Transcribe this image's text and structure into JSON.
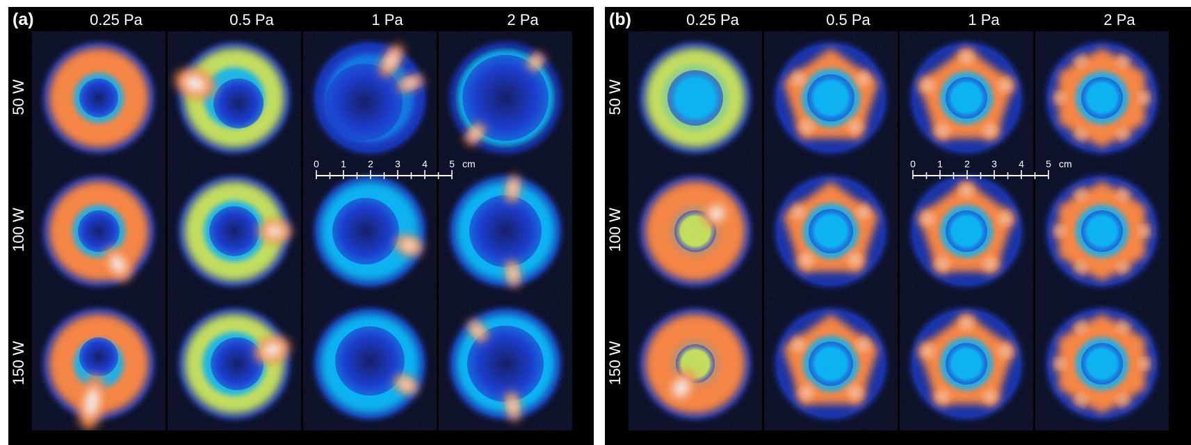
{
  "panels": [
    {
      "letter": "(a)",
      "columns": [
        "0.25 Pa",
        "0.5 Pa",
        "1 Pa",
        "2 Pa"
      ],
      "rows": [
        "50 W",
        "100 W",
        "150 W"
      ],
      "scale": {
        "ticks": [
          "0",
          "1",
          "2",
          "3",
          "4",
          "5"
        ],
        "unit": "cm"
      }
    },
    {
      "letter": "(b)",
      "columns": [
        "0.25 Pa",
        "0.5 Pa",
        "1 Pa",
        "2 Pa"
      ],
      "rows": [
        "50 W",
        "100 W",
        "150 W"
      ],
      "scale": {
        "ticks": [
          "0",
          "1",
          "2",
          "3",
          "4",
          "5"
        ],
        "unit": "cm"
      }
    }
  ],
  "colormap": [
    "#000014",
    "#08105a",
    "#1030c8",
    "#00b0f0",
    "#40f0d0",
    "#c8e050",
    "#ff8030",
    "#ff3010",
    "#ffffff"
  ]
}
